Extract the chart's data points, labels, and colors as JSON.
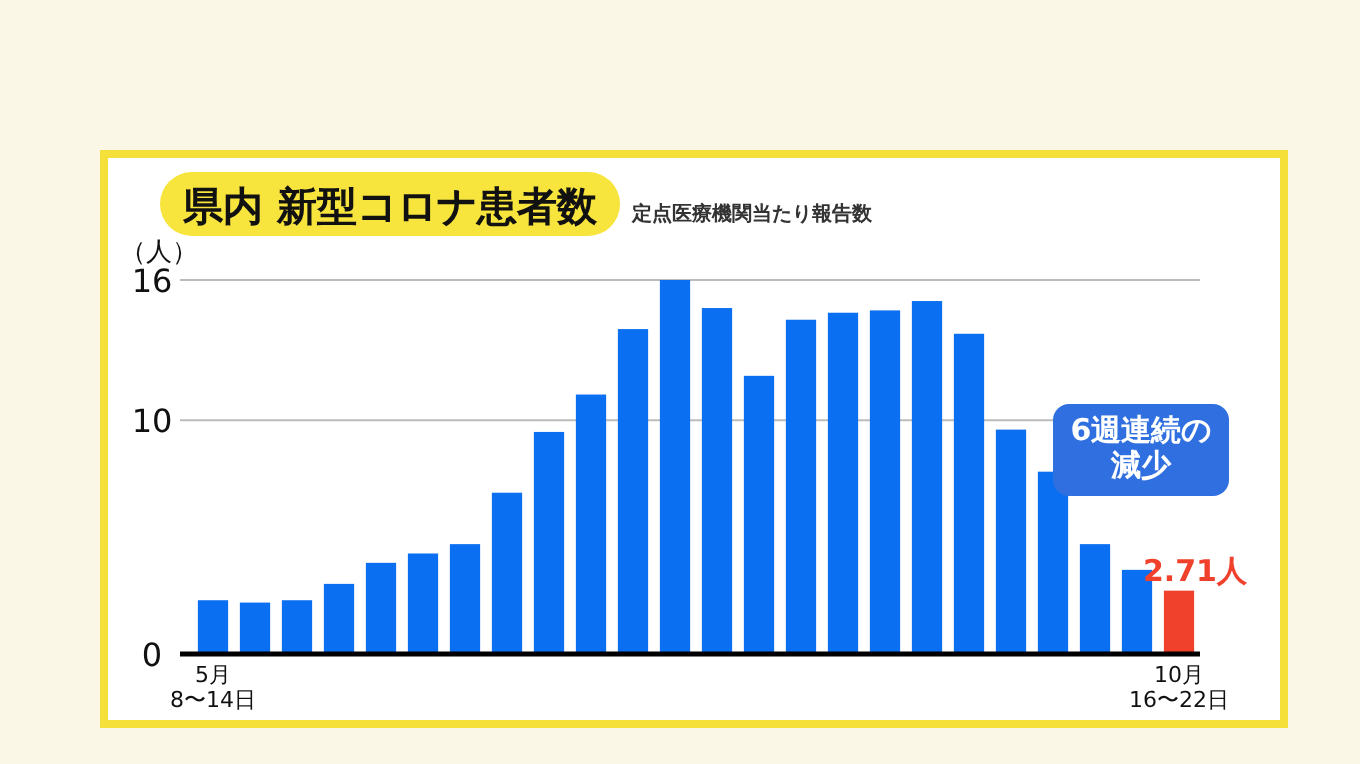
{
  "chart_data": {
    "type": "bar",
    "title": "県内 新型コロナ患者数",
    "subtitle": "定点医療機関当たり報告数",
    "ylabel": "（人）",
    "categories": [
      "5月\n8〜14日",
      null,
      null,
      null,
      null,
      null,
      null,
      null,
      null,
      null,
      null,
      null,
      null,
      null,
      null,
      null,
      null,
      null,
      null,
      null,
      null,
      null,
      null,
      "10月\n16〜22日"
    ],
    "values": [
      2.3,
      2.2,
      2.3,
      3.0,
      3.9,
      4.3,
      4.7,
      6.9,
      9.5,
      11.1,
      13.9,
      16.0,
      14.8,
      11.9,
      14.3,
      14.6,
      14.7,
      15.1,
      13.7,
      9.6,
      7.8,
      4.7,
      3.6,
      2.71
    ],
    "colors": [
      "#0a6ff0",
      "#0a6ff0",
      "#0a6ff0",
      "#0a6ff0",
      "#0a6ff0",
      "#0a6ff0",
      "#0a6ff0",
      "#0a6ff0",
      "#0a6ff0",
      "#0a6ff0",
      "#0a6ff0",
      "#0a6ff0",
      "#0a6ff0",
      "#0a6ff0",
      "#0a6ff0",
      "#0a6ff0",
      "#0a6ff0",
      "#0a6ff0",
      "#0a6ff0",
      "#0a6ff0",
      "#0a6ff0",
      "#0a6ff0",
      "#0a6ff0",
      "#f0412d"
    ],
    "value_labels": [
      null,
      null,
      null,
      null,
      null,
      null,
      null,
      null,
      null,
      null,
      null,
      null,
      null,
      null,
      null,
      null,
      null,
      null,
      null,
      null,
      null,
      null,
      null,
      "2.71人"
    ],
    "annotations": [
      "6週連続の減少"
    ],
    "ylim": [
      0,
      16
    ],
    "yticks": [
      0,
      10,
      16
    ],
    "grid": "y"
  }
}
